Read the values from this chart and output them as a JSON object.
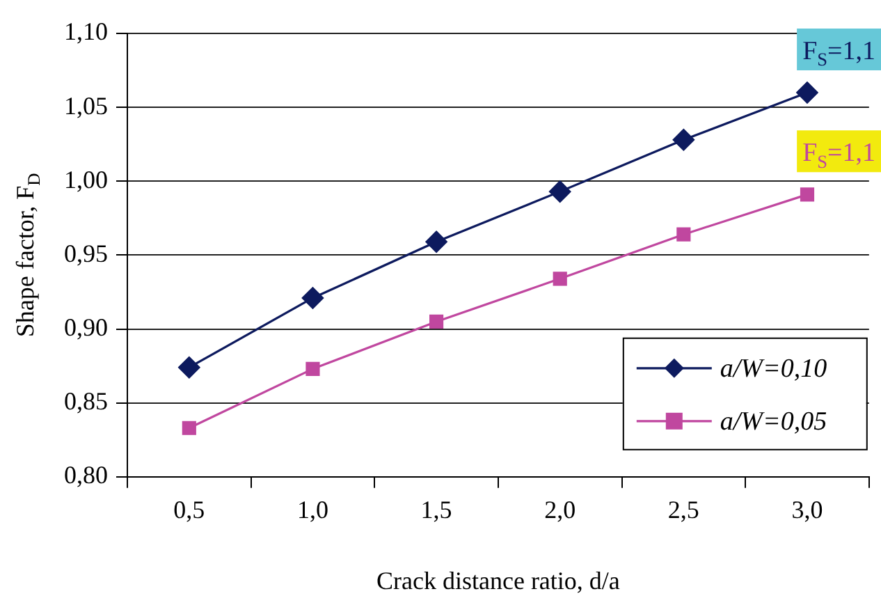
{
  "chart_data": {
    "type": "line",
    "xlabel": "Crack distance ratio, d/a",
    "ylabel": "Shape factor, F$_{D}$",
    "categories": [
      "0,5",
      "1,0",
      "1,5",
      "2,0",
      "2,5",
      "3,0"
    ],
    "series": [
      {
        "name": "a/W=0,10",
        "color": "#0d1a5e",
        "marker": "diamond",
        "values": [
          0.874,
          0.921,
          0.959,
          0.993,
          1.028,
          1.06
        ]
      },
      {
        "name": "a/W=0,05",
        "color": "#c0479f",
        "marker": "square",
        "values": [
          0.833,
          0.873,
          0.905,
          0.934,
          0.964,
          0.991
        ]
      }
    ],
    "annotations": [
      "F$_{S}$=1,1",
      "F$_{S}$=1,1"
    ],
    "ylim": [
      0.8,
      1.1
    ],
    "yticks": [
      {
        "value": 0.8,
        "label": "0,80"
      },
      {
        "value": 0.85,
        "label": "0,85"
      },
      {
        "value": 0.9,
        "label": "0,90"
      },
      {
        "value": 0.95,
        "label": "0,95"
      },
      {
        "value": 1.0,
        "label": "1,00"
      },
      {
        "value": 1.05,
        "label": "1,05"
      },
      {
        "value": 1.1,
        "label": "1,10"
      }
    ],
    "grid": "y",
    "legend": "bottom right"
  }
}
